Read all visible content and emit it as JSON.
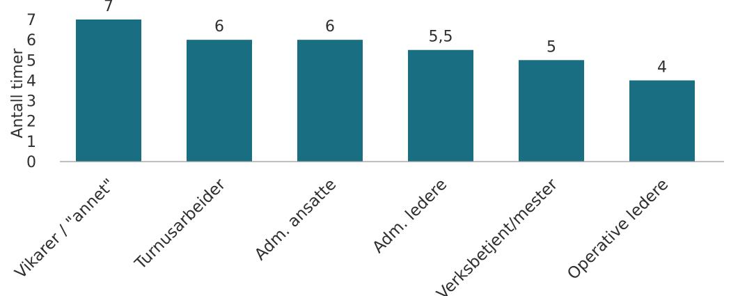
{
  "chart_data": {
    "type": "bar",
    "title": "",
    "xlabel": "",
    "ylabel": "Antall timer",
    "categories": [
      "Vikarer / \"annet\"",
      "Turnusarbeider",
      "Adm. ansatte",
      "Adm. ledere",
      "Verksbetjent/mester",
      "Operative ledere"
    ],
    "values": [
      7,
      6,
      6,
      5.5,
      5,
      4
    ],
    "data_labels": [
      "7",
      "6",
      "6",
      "5,5",
      "5",
      "4"
    ],
    "ylim": [
      0,
      7
    ],
    "yticks": [
      0,
      1,
      2,
      3,
      4,
      5,
      6,
      7
    ],
    "grid": false,
    "legend": "none",
    "bar_color": "#1a6e82"
  }
}
